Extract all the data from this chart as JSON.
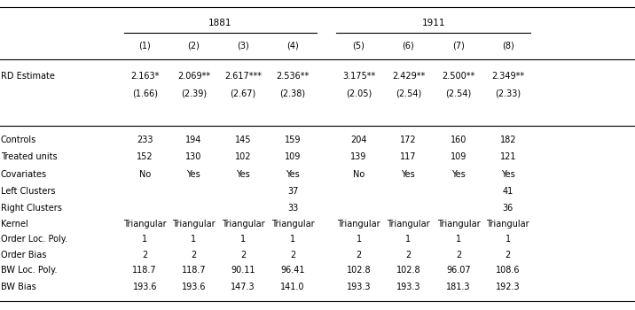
{
  "col_headers": [
    "(1)",
    "(2)",
    "(3)",
    "(4)",
    "(5)",
    "(6)",
    "(7)",
    "(8)"
  ],
  "group_labels": [
    "1881",
    "1911"
  ],
  "rows": [
    {
      "label": "RD Estimate",
      "values": [
        "2.163*",
        "2.069**",
        "2.617***",
        "2.536**",
        "3.175**",
        "2.429**",
        "2.500**",
        "2.349**"
      ],
      "sub_values": [
        "(1.66)",
        "(2.39)",
        "(2.67)",
        "(2.38)",
        "(2.05)",
        "(2.54)",
        "(2.54)",
        "(2.33)"
      ]
    },
    {
      "label": "Controls",
      "values": [
        "233",
        "194",
        "145",
        "159",
        "204",
        "172",
        "160",
        "182"
      ],
      "sub_values": null
    },
    {
      "label": "Treated units",
      "values": [
        "152",
        "130",
        "102",
        "109",
        "139",
        "117",
        "109",
        "121"
      ],
      "sub_values": null
    },
    {
      "label": "Covariates",
      "values": [
        "No",
        "Yes",
        "Yes",
        "Yes",
        "No",
        "Yes",
        "Yes",
        "Yes"
      ],
      "sub_values": null
    },
    {
      "label": "Left Clusters",
      "values": [
        "",
        "",
        "",
        "37",
        "",
        "",
        "",
        "41"
      ],
      "sub_values": null
    },
    {
      "label": "Right Clusters",
      "values": [
        "",
        "",
        "",
        "33",
        "",
        "",
        "",
        "36"
      ],
      "sub_values": null
    },
    {
      "label": "Kernel",
      "values": [
        "Triangular",
        "Triangular",
        "Triangular",
        "Triangular",
        "Triangular",
        "Triangular",
        "Triangular",
        "Triangular"
      ],
      "sub_values": null
    },
    {
      "label": "Order Loc. Poly.",
      "values": [
        "1",
        "1",
        "1",
        "1",
        "1",
        "1",
        "1",
        "1"
      ],
      "sub_values": null
    },
    {
      "label": "Order Bias",
      "values": [
        "2",
        "2",
        "2",
        "2",
        "2",
        "2",
        "2",
        "2"
      ],
      "sub_values": null
    },
    {
      "label": "BW Loc. Poly.",
      "values": [
        "118.7",
        "118.7",
        "90.11",
        "96.41",
        "102.8",
        "102.8",
        "96.07",
        "108.6"
      ],
      "sub_values": null
    },
    {
      "label": "BW Bias",
      "values": [
        "193.6",
        "193.6",
        "147.3",
        "141.0",
        "193.3",
        "193.3",
        "181.3",
        "192.3"
      ],
      "sub_values": null
    }
  ],
  "fs": 7.0,
  "fs_group": 7.5,
  "lw": 0.8,
  "bg": "#ffffff"
}
